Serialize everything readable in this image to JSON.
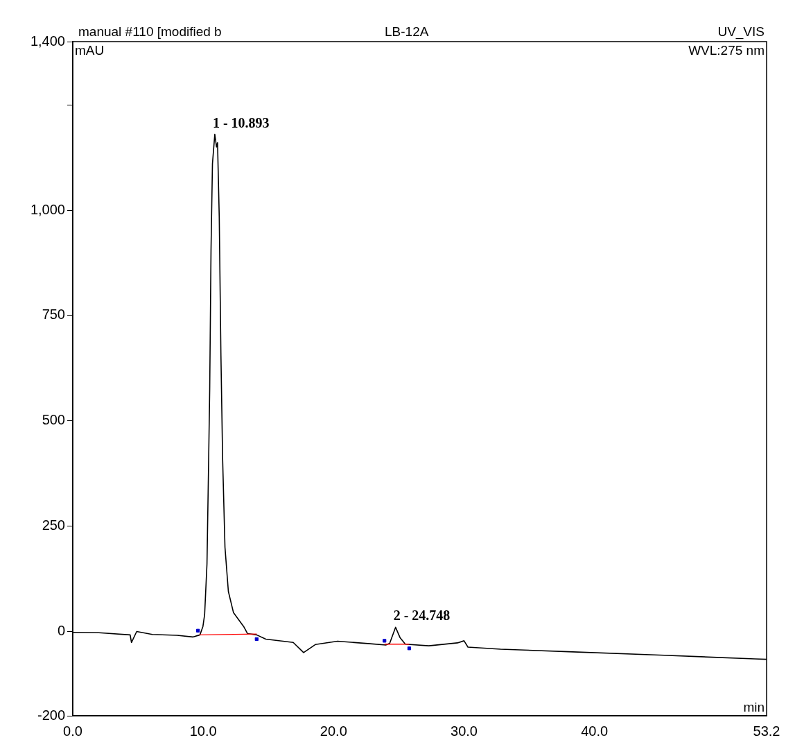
{
  "chart_data": {
    "type": "line",
    "title": "manual #110 [modified b",
    "subtitle": "LB-12A",
    "xlabel": "min",
    "ylabel": "mAU",
    "annotations": [
      "UV_VIS",
      "WVL:275 nm",
      {
        "text": "1 - 10.893",
        "x": 10.893,
        "y": 1180
      },
      {
        "text": "2 - 24.748",
        "x": 24.748,
        "y": 10
      }
    ],
    "xlim": [
      0,
      53.2
    ],
    "xticks": [
      {
        "value": 0,
        "label": "0.0"
      },
      {
        "value": 10,
        "label": "10.0"
      },
      {
        "value": 20,
        "label": "20.0"
      },
      {
        "value": 30,
        "label": "30.0"
      },
      {
        "value": 40,
        "label": "40.0"
      },
      53.2
    ],
    "ylim": [
      -200,
      1400
    ],
    "yticks": [
      -200,
      0,
      250,
      500,
      750,
      {
        "value": 1000,
        "label": "1,000"
      },
      {
        "value": 1250,
        "label": null
      },
      {
        "value": 1400,
        "label": "1,400"
      }
    ],
    "legend": false,
    "series": [
      {
        "type": "line",
        "color": "#000000",
        "x": [
          0,
          2,
          4.4,
          4.5,
          4.9,
          6.1,
          8,
          9.2,
          9.75,
          9.98,
          10.11,
          10.29,
          10.42,
          10.5,
          10.6,
          10.71,
          10.89,
          11.02,
          11.1,
          11.23,
          11.36,
          11.49,
          11.67,
          11.93,
          12.32,
          13.1,
          13.4,
          14.1,
          14.8,
          16.9,
          17.7,
          18.6,
          20.3,
          22.8,
          24,
          24.3,
          24.75,
          25.1,
          25.5,
          27.3,
          29.5,
          30,
          30.3,
          32.8,
          38,
          45,
          52.3,
          53.2
        ],
        "values": [
          -2,
          -3,
          -8,
          -26,
          0,
          -7,
          -9,
          -13,
          -8,
          12,
          40,
          160,
          410,
          575,
          905,
          1110,
          1180,
          1150,
          1160,
          985,
          655,
          410,
          200,
          95,
          45,
          12,
          -5,
          -8,
          -18,
          -26,
          -50,
          -31,
          -23,
          -29,
          -32,
          -28,
          10,
          -15,
          -30,
          -34,
          -27,
          -22,
          -37,
          -42,
          -48,
          -56,
          -65,
          -66
        ]
      },
      {
        "type": "line",
        "color": "#ff0000",
        "x": [
          9.7,
          14.1
        ],
        "values": [
          -8,
          -6
        ]
      },
      {
        "type": "line",
        "color": "#ff0000",
        "x": [
          23.9,
          25.8
        ],
        "values": [
          -30,
          -30
        ]
      },
      {
        "type": "scatter",
        "color": "#0000cc",
        "x": [
          9.6,
          14.1,
          23.9,
          25.8
        ],
        "values": [
          2,
          -18,
          -22,
          -40
        ]
      }
    ]
  }
}
